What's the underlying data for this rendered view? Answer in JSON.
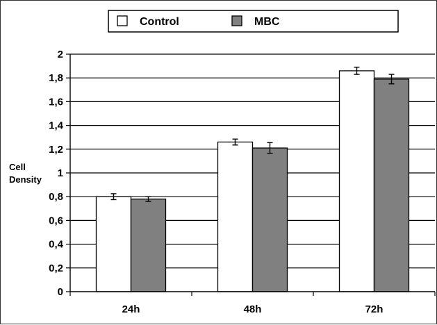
{
  "chart_data": {
    "type": "bar",
    "title": "",
    "xlabel": "",
    "ylabel": [
      "Cell",
      "Density"
    ],
    "categories": [
      "24h",
      "48h",
      "72h"
    ],
    "series": [
      {
        "name": "Control",
        "values": [
          0.8,
          1.26,
          1.86
        ],
        "errors": [
          0.025,
          0.025,
          0.03
        ],
        "color": "#ffffff"
      },
      {
        "name": "MBC",
        "values": [
          0.78,
          1.21,
          1.79
        ],
        "errors": [
          0.02,
          0.045,
          0.04
        ],
        "color": "#808080"
      }
    ],
    "ylim": [
      0,
      2
    ],
    "yticks": [
      0,
      0.2,
      0.4,
      0.6,
      0.8,
      1,
      1.2,
      1.4,
      1.6,
      1.8,
      2
    ],
    "ytick_labels": [
      "0",
      "0,2",
      "0,4",
      "0,6",
      "0,8",
      "1",
      "1,2",
      "1,4",
      "1,6",
      "1,8",
      "2"
    ],
    "grid": true,
    "legend": "top"
  }
}
